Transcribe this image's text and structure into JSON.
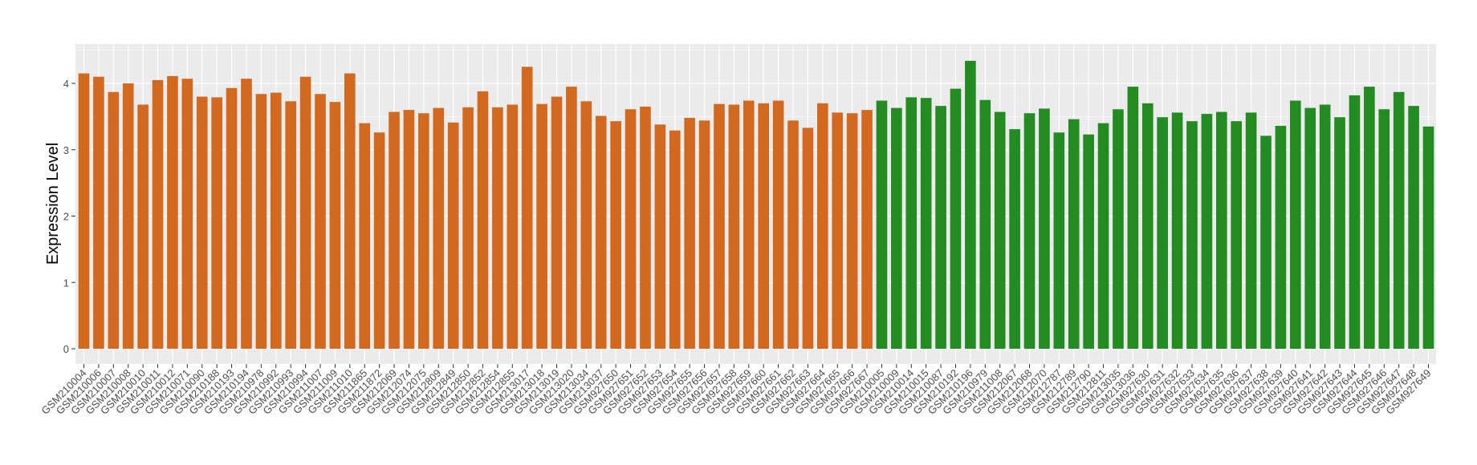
{
  "chart_data": {
    "type": "bar",
    "title": "",
    "xlabel": "",
    "ylabel": "Expression Level",
    "ylim": [
      0,
      4.5
    ],
    "yticks": [
      0,
      1,
      2,
      3,
      4
    ],
    "grid": true,
    "legend": "none",
    "colors": {
      "orange": "#D2691E",
      "green": "#228B22",
      "panel": "#EBEBEB",
      "grid": "#FFFFFF"
    },
    "categories": [
      "GSM210004",
      "GSM210006",
      "GSM210007",
      "GSM210008",
      "GSM210010",
      "GSM210011",
      "GSM210012",
      "GSM210071",
      "GSM210090",
      "GSM210188",
      "GSM210193",
      "GSM210194",
      "GSM210978",
      "GSM210992",
      "GSM210993",
      "GSM210994",
      "GSM211007",
      "GSM211009",
      "GSM211010",
      "GSM211865",
      "GSM211872",
      "GSM212069",
      "GSM212074",
      "GSM212075",
      "GSM212809",
      "GSM212849",
      "GSM212850",
      "GSM212852",
      "GSM212854",
      "GSM212855",
      "GSM213017",
      "GSM213018",
      "GSM213019",
      "GSM213020",
      "GSM213034",
      "GSM213037",
      "GSM927650",
      "GSM927651",
      "GSM927652",
      "GSM927653",
      "GSM927654",
      "GSM927655",
      "GSM927656",
      "GSM927657",
      "GSM927658",
      "GSM927659",
      "GSM927660",
      "GSM927661",
      "GSM927662",
      "GSM927663",
      "GSM927664",
      "GSM927665",
      "GSM927666",
      "GSM927667",
      "GSM210005",
      "GSM210009",
      "GSM210014",
      "GSM210015",
      "GSM210087",
      "GSM210192",
      "GSM210196",
      "GSM210979",
      "GSM211008",
      "GSM212067",
      "GSM212068",
      "GSM212070",
      "GSM212787",
      "GSM212789",
      "GSM212790",
      "GSM212811",
      "GSM213035",
      "GSM213036",
      "GSM927630",
      "GSM927631",
      "GSM927632",
      "GSM927633",
      "GSM927634",
      "GSM927635",
      "GSM927636",
      "GSM927637",
      "GSM927638",
      "GSM927639",
      "GSM927640",
      "GSM927641",
      "GSM927642",
      "GSM927643",
      "GSM927644",
      "GSM927645",
      "GSM927646",
      "GSM927647",
      "GSM927648",
      "GSM927649"
    ],
    "values": [
      4.15,
      4.1,
      3.87,
      4.0,
      3.68,
      4.05,
      4.11,
      4.07,
      3.8,
      3.79,
      3.93,
      4.07,
      3.84,
      3.86,
      3.73,
      4.1,
      3.84,
      3.72,
      4.15,
      3.4,
      3.26,
      3.57,
      3.6,
      3.55,
      3.63,
      3.41,
      3.64,
      3.88,
      3.64,
      3.68,
      4.25,
      3.69,
      3.8,
      3.95,
      3.73,
      3.51,
      3.43,
      3.61,
      3.65,
      3.38,
      3.29,
      3.48,
      3.44,
      3.69,
      3.68,
      3.74,
      3.7,
      3.74,
      3.44,
      3.33,
      3.7,
      3.56,
      3.55,
      3.6,
      3.74,
      3.63,
      3.79,
      3.78,
      3.66,
      3.92,
      4.34,
      3.75,
      3.57,
      3.31,
      3.55,
      3.62,
      3.26,
      3.46,
      3.23,
      3.4,
      3.61,
      3.95,
      3.7,
      3.49,
      3.56,
      3.43,
      3.54,
      3.57,
      3.43,
      3.56,
      3.21,
      3.36,
      3.74,
      3.63,
      3.68,
      3.49,
      3.82,
      3.95,
      3.61,
      3.87,
      3.66,
      3.35
    ],
    "groups": [
      "orange",
      "orange",
      "orange",
      "orange",
      "orange",
      "orange",
      "orange",
      "orange",
      "orange",
      "orange",
      "orange",
      "orange",
      "orange",
      "orange",
      "orange",
      "orange",
      "orange",
      "orange",
      "orange",
      "orange",
      "orange",
      "orange",
      "orange",
      "orange",
      "orange",
      "orange",
      "orange",
      "orange",
      "orange",
      "orange",
      "orange",
      "orange",
      "orange",
      "orange",
      "orange",
      "orange",
      "orange",
      "orange",
      "orange",
      "orange",
      "orange",
      "orange",
      "orange",
      "orange",
      "orange",
      "orange",
      "orange",
      "orange",
      "orange",
      "orange",
      "orange",
      "orange",
      "orange",
      "orange",
      "green",
      "green",
      "green",
      "green",
      "green",
      "green",
      "green",
      "green",
      "green",
      "green",
      "green",
      "green",
      "green",
      "green",
      "green",
      "green",
      "green",
      "green",
      "green",
      "green",
      "green",
      "green",
      "green",
      "green",
      "green",
      "green",
      "green",
      "green",
      "green",
      "green",
      "green",
      "green",
      "green",
      "green",
      "green",
      "green",
      "green",
      "green"
    ]
  }
}
